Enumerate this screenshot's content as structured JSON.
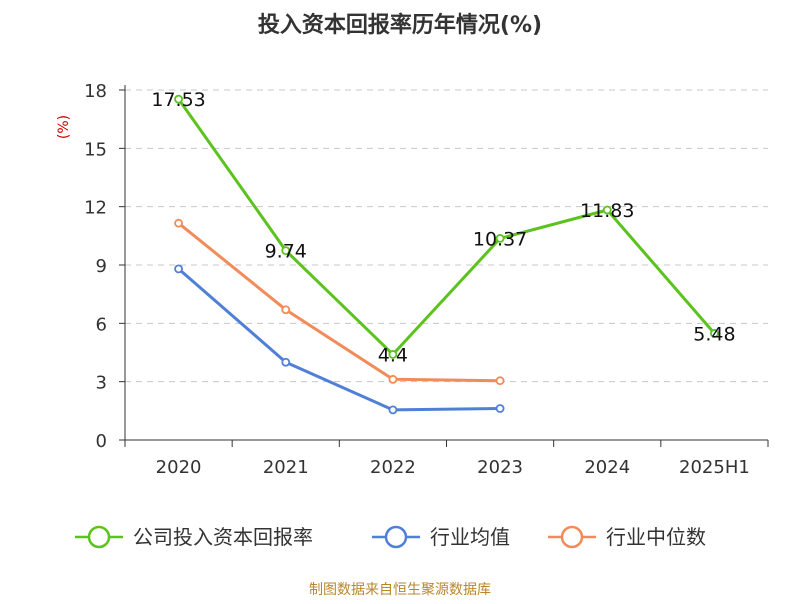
{
  "chart_data": {
    "type": "line",
    "title": "投入资本回报率历年情况(%)",
    "ylabel": "(%)",
    "categories": [
      "2020",
      "2021",
      "2022",
      "2023",
      "2024",
      "2025H1"
    ],
    "yticks": [
      "0",
      "3",
      "6",
      "9",
      "12",
      "15",
      "18"
    ],
    "ylim": [
      0,
      18
    ],
    "grid": true,
    "legend_position": "bottom",
    "series": [
      {
        "name": "公司投入资本回报率",
        "color": "#5bc21e",
        "values": [
          17.53,
          9.74,
          4.4,
          10.37,
          11.83,
          5.48
        ],
        "labels": [
          "17.53",
          "9.74",
          "4.4",
          "10.37",
          "11.83",
          "5.48"
        ]
      },
      {
        "name": "行业均值",
        "color": "#4f7fd6",
        "values": [
          8.8,
          4.0,
          1.55,
          1.62,
          null,
          null
        ]
      },
      {
        "name": "行业中位数",
        "color": "#f28b5a",
        "values": [
          11.15,
          6.7,
          3.12,
          3.05,
          null,
          null
        ]
      }
    ]
  },
  "source": "制图数据来自恒生聚源数据库"
}
